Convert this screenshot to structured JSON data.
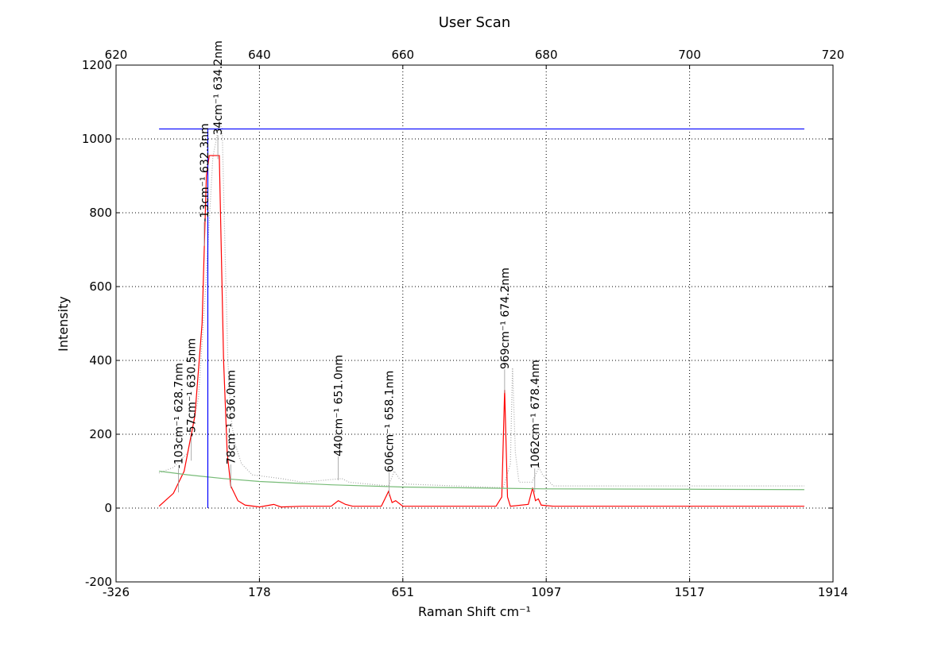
{
  "chart_data": {
    "type": "line",
    "title": "User Scan",
    "xlabel": "Raman Shift cm⁻¹",
    "ylabel": "Intensity",
    "xlim": [
      620,
      720
    ],
    "ylim": [
      -200,
      1200
    ],
    "xticks": [
      {
        "value": 620,
        "label": "-326"
      },
      {
        "value": 640,
        "label": "178"
      },
      {
        "value": 660,
        "label": "651"
      },
      {
        "value": 680,
        "label": "1097"
      },
      {
        "value": 700,
        "label": "1517"
      },
      {
        "value": 720,
        "label": "1914"
      }
    ],
    "x2ticks": [
      620,
      640,
      660,
      680,
      700,
      720
    ],
    "yticks": [
      -200,
      0,
      200,
      400,
      600,
      800,
      1000,
      1200
    ],
    "grid": true,
    "series": [
      {
        "color": "#aaaaaa",
        "style": "dotted",
        "x": [
          626,
          628,
          630,
          631.5,
          632.5,
          633.5,
          634.4,
          634.8,
          635.2,
          635.6,
          636,
          636.5,
          637.5,
          639,
          643,
          646,
          651.5,
          652.5,
          658,
          658.8,
          659.5,
          660.5,
          674,
          675,
          675.3,
          675.7,
          676.2,
          678,
          679,
          679.5,
          680,
          681,
          716
        ],
        "values": [
          95,
          110,
          150,
          300,
          600,
          950,
          1040,
          1030,
          700,
          400,
          250,
          180,
          120,
          90,
          80,
          70,
          80,
          70,
          60,
          100,
          80,
          65,
          55,
          120,
          380,
          150,
          70,
          70,
          110,
          90,
          80,
          60,
          60
        ]
      },
      {
        "color": "#ff0000",
        "style": "solid",
        "x": [
          626,
          628,
          629.5,
          631,
          632,
          632.6,
          633,
          634.4,
          635,
          635.5,
          636,
          637,
          638,
          640,
          642,
          643,
          646,
          650,
          651,
          652,
          653,
          657,
          658,
          658.5,
          659,
          660,
          673,
          673.8,
          674.2,
          674.6,
          675,
          677.5,
          678.1,
          678.5,
          678.9,
          679.3,
          681,
          716
        ],
        "values": [
          5,
          40,
          100,
          250,
          500,
          900,
          955,
          955,
          400,
          150,
          60,
          20,
          8,
          3,
          10,
          3,
          5,
          5,
          20,
          10,
          5,
          5,
          45,
          15,
          20,
          5,
          5,
          30,
          320,
          30,
          5,
          10,
          55,
          20,
          25,
          8,
          5,
          5
        ]
      },
      {
        "color": "#77bb77",
        "style": "solid",
        "x": [
          626,
          630,
          635,
          640,
          650,
          660,
          680,
          700,
          716
        ],
        "values": [
          100,
          90,
          80,
          72,
          63,
          57,
          52,
          51,
          50
        ]
      },
      {
        "color": "#0000ff",
        "style": "solid",
        "x": [
          626,
          716
        ],
        "values": [
          1027,
          1027
        ]
      },
      {
        "color": "#0000ff",
        "style": "solid",
        "x": [
          632.8,
          632.8
        ],
        "values": [
          0,
          1027
        ]
      }
    ],
    "annotations": [
      {
        "x": 628.7,
        "y": 107,
        "text": "-103cm⁻¹ 628.7nm"
      },
      {
        "x": 630.5,
        "y": 193,
        "text": "-57cm⁻¹ 630.5nm"
      },
      {
        "x": 632.3,
        "y": 775,
        "text": "-13cm⁻¹ 632.3nm"
      },
      {
        "x": 634.2,
        "y": 1010,
        "text": "34cm⁻¹ 634.2nm"
      },
      {
        "x": 636.0,
        "y": 118,
        "text": "78cm⁻¹ 636.0nm"
      },
      {
        "x": 651.0,
        "y": 140,
        "text": "440cm⁻¹ 651.0nm"
      },
      {
        "x": 658.1,
        "y": 97,
        "text": "606cm⁻¹ 658.1nm"
      },
      {
        "x": 674.2,
        "y": 376,
        "text": "969cm⁻¹ 674.2nm"
      },
      {
        "x": 678.4,
        "y": 107,
        "text": "1062cm⁻¹ 678.4nm"
      }
    ]
  }
}
